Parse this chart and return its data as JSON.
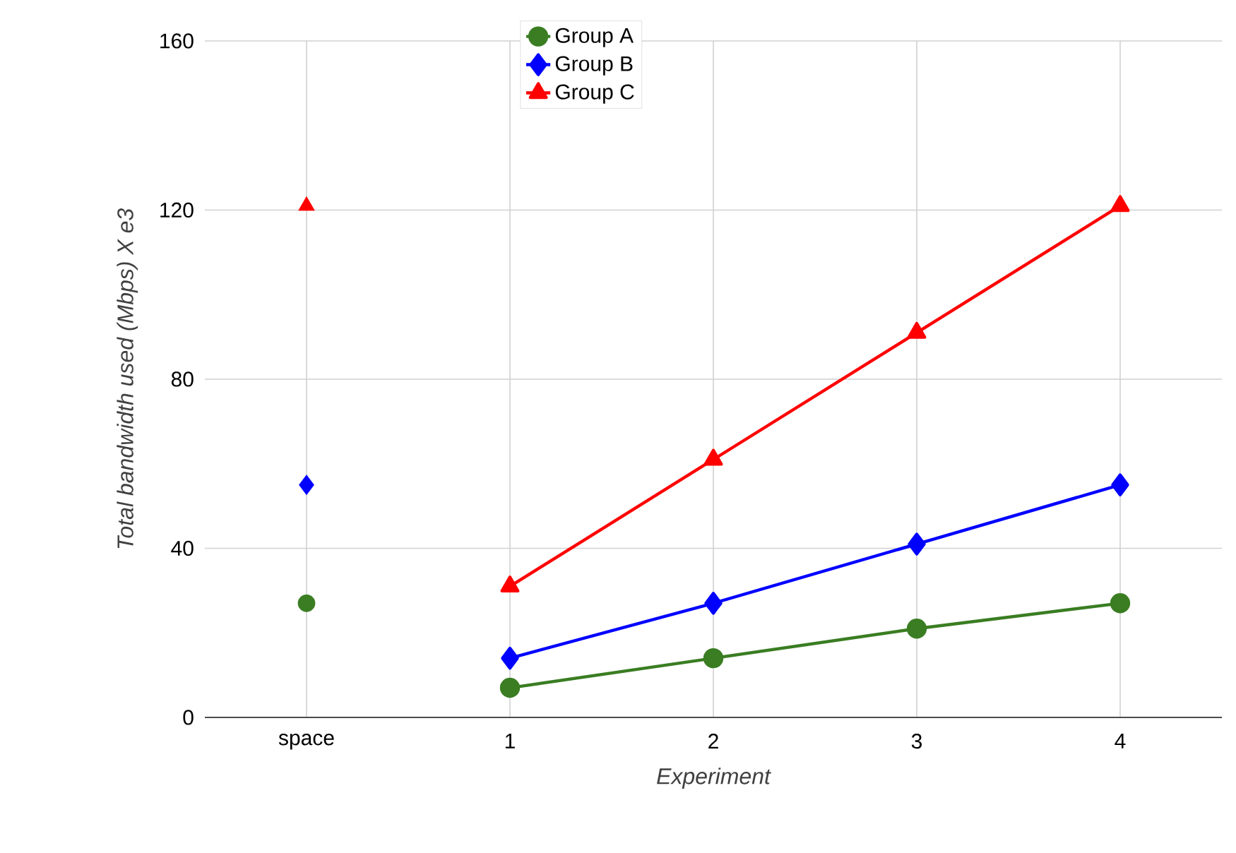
{
  "chart_data": {
    "type": "line",
    "xlabel": "Experiment",
    "ylabel": "Total bandwidth used (Mbps) X e3",
    "categories": [
      "space",
      "1",
      "2",
      "3",
      "4"
    ],
    "ylim": [
      0,
      160
    ],
    "yticks": [
      0,
      40,
      80,
      120,
      160
    ],
    "grid": true,
    "legend": "top",
    "series": [
      {
        "name": "Group A",
        "color": "#3a7d22",
        "marker": "circle",
        "values": [
          null,
          7,
          14,
          21,
          27
        ]
      },
      {
        "name": "Group B",
        "color": "#0000ff",
        "marker": "diamond",
        "values": [
          null,
          14,
          27,
          41,
          55
        ]
      },
      {
        "name": "Group C",
        "color": "#ff0000",
        "marker": "triangle",
        "values": [
          null,
          31,
          61,
          91,
          121
        ]
      },
      {
        "type": "scatter",
        "color": "#3a7d22",
        "marker": "circle",
        "values": [
          27,
          null,
          null,
          null,
          null
        ]
      },
      {
        "type": "scatter",
        "color": "#0000ff",
        "marker": "diamond",
        "values": [
          55,
          null,
          null,
          null,
          null
        ]
      },
      {
        "type": "scatter",
        "color": "#ff0000",
        "marker": "triangle",
        "values": [
          121,
          null,
          null,
          null,
          null
        ]
      }
    ]
  }
}
